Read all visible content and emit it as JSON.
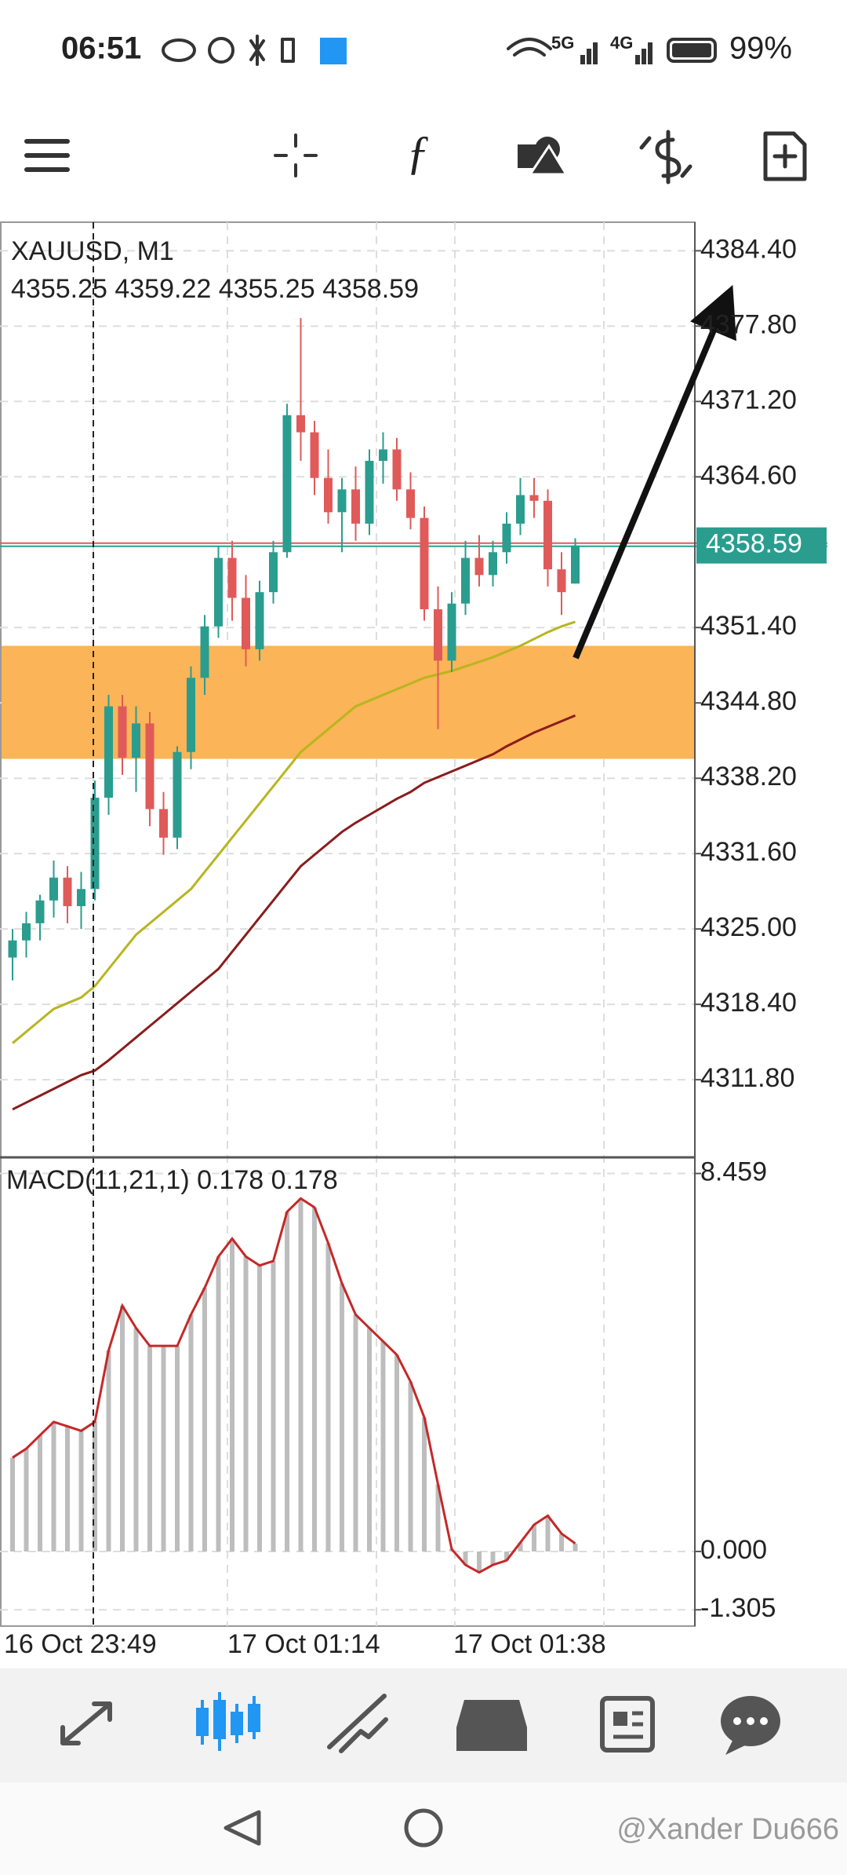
{
  "status_bar": {
    "time": "06:51",
    "network_1": "5G",
    "network_2": "4G",
    "battery": "99%"
  },
  "chart_data": {
    "type": "candlestick",
    "symbol": "XAUUSD, M1",
    "ohlc": [
      4355.25,
      4359.22,
      4355.25,
      4358.59
    ],
    "bull_color": "#2a9d8f",
    "bear_color": "#e05a5a",
    "open": [
      4322.5,
      4324.0,
      4325.5,
      4327.5,
      4329.5,
      4327.0,
      4328.5,
      4336.5,
      4344.5,
      4340.0,
      4343.0,
      4335.5,
      4333.0,
      4340.5,
      4347.0,
      4351.5,
      4357.5,
      4354.0,
      4349.5,
      4354.5,
      4358.0,
      4370.0,
      4368.5,
      4364.5,
      4361.5,
      4363.5,
      4360.5,
      4366.0,
      4367.0,
      4363.5,
      4361.0,
      4353.0,
      4348.5,
      4353.5,
      4357.5,
      4356.0,
      4358.0,
      4360.5,
      4363.0,
      4362.5,
      4356.5,
      4355.25
    ],
    "high": [
      4325.0,
      4326.5,
      4328.0,
      4331.0,
      4330.5,
      4330.0,
      4338.0,
      4345.5,
      4345.5,
      4344.5,
      4344.0,
      4337.0,
      4341.0,
      4348.0,
      4352.5,
      4358.5,
      4359.0,
      4356.0,
      4355.5,
      4359.0,
      4371.0,
      4378.5,
      4369.5,
      4367.0,
      4364.5,
      4365.5,
      4367.0,
      4368.5,
      4368.0,
      4365.0,
      4362.0,
      4355.0,
      4354.5,
      4359.0,
      4359.5,
      4359.0,
      4361.5,
      4364.5,
      4364.5,
      4363.5,
      4358.0,
      4359.22
    ],
    "low": [
      4320.5,
      4322.5,
      4324.0,
      4326.0,
      4325.5,
      4325.0,
      4327.5,
      4335.0,
      4338.5,
      4337.0,
      4334.0,
      4331.5,
      4332.0,
      4339.0,
      4345.5,
      4350.5,
      4352.0,
      4348.0,
      4348.5,
      4353.5,
      4357.5,
      4366.0,
      4363.0,
      4360.5,
      4358.0,
      4359.0,
      4359.5,
      4364.0,
      4362.5,
      4360.0,
      4352.0,
      4342.5,
      4347.5,
      4352.5,
      4355.0,
      4355.0,
      4357.0,
      4359.5,
      4361.0,
      4355.0,
      4352.5,
      4355.25
    ],
    "close": [
      4324.0,
      4325.5,
      4327.5,
      4329.5,
      4327.0,
      4328.5,
      4336.5,
      4344.5,
      4340.0,
      4343.0,
      4335.5,
      4333.0,
      4340.5,
      4347.0,
      4351.5,
      4357.5,
      4354.0,
      4349.5,
      4354.5,
      4358.0,
      4370.0,
      4368.5,
      4364.5,
      4361.5,
      4363.5,
      4360.5,
      4366.0,
      4367.0,
      4363.5,
      4361.0,
      4353.0,
      4348.5,
      4353.5,
      4357.5,
      4356.0,
      4358.0,
      4360.5,
      4363.0,
      4362.5,
      4356.5,
      4354.5,
      4358.59
    ],
    "ma_fast": {
      "color": "#b8b520",
      "values": [
        4315,
        4316,
        4317,
        4318,
        4318.5,
        4319,
        4320,
        4321.5,
        4323,
        4324.5,
        4325.5,
        4326.5,
        4327.5,
        4328.5,
        4330,
        4331.5,
        4333,
        4334.5,
        4336,
        4337.5,
        4339,
        4340.5,
        4341.5,
        4342.5,
        4343.5,
        4344.5,
        4345,
        4345.5,
        4346,
        4346.5,
        4347,
        4347.3,
        4347.6,
        4348,
        4348.4,
        4348.8,
        4349.3,
        4349.8,
        4350.4,
        4351,
        4351.5,
        4351.9
      ]
    },
    "ma_slow": {
      "color": "#8b1c1c",
      "values": [
        4309.2,
        4309.8,
        4310.4,
        4311,
        4311.6,
        4312.2,
        4312.6,
        4313.5,
        4314.5,
        4315.5,
        4316.5,
        4317.5,
        4318.5,
        4319.5,
        4320.5,
        4321.5,
        4323,
        4324.5,
        4326,
        4327.5,
        4329,
        4330.5,
        4331.5,
        4332.5,
        4333.5,
        4334.3,
        4335,
        4335.7,
        4336.4,
        4337,
        4337.8,
        4338.3,
        4338.8,
        4339.3,
        4339.8,
        4340.3,
        4341,
        4341.6,
        4342.2,
        4342.7,
        4343.2,
        4343.7
      ]
    },
    "zone": {
      "color": "#fbb457",
      "range": [
        4339.9,
        4349.8
      ]
    },
    "current_price": {
      "value": 4358.59,
      "color": "#2a9d8f"
    },
    "ylim": [
      4305.0,
      4386.9
    ],
    "yticks": [
      {
        "value": 4384.4,
        "label": "4384.40"
      },
      {
        "value": 4377.8,
        "label": "4377.80"
      },
      {
        "value": 4371.2,
        "label": "4371.20"
      },
      {
        "value": 4364.6,
        "label": "4364.60"
      },
      {
        "value": 4351.4,
        "label": "4351.40"
      },
      {
        "value": 4344.8,
        "label": "4344.80"
      },
      {
        "value": 4338.2,
        "label": "4338.20"
      },
      {
        "value": 4331.6,
        "label": "4331.60"
      },
      {
        "value": 4325.0,
        "label": "4325.00"
      },
      {
        "value": 4318.4,
        "label": "4318.40"
      },
      {
        "value": 4311.8,
        "label": "4311.80"
      }
    ],
    "grid": true,
    "x_labels": [
      "16 Oct 23:49",
      "17 Oct 01:14",
      "17 Oct 01:38"
    ],
    "macd": {
      "label": "MACD(11,21,1) 0.178 0.178",
      "color": "#c62828",
      "bar_color": "#bdbdbd",
      "values": [
        2.1,
        2.3,
        2.6,
        2.9,
        2.8,
        2.7,
        2.9,
        4.5,
        5.5,
        5.0,
        4.6,
        4.6,
        4.6,
        5.3,
        5.9,
        6.6,
        7.0,
        6.6,
        6.4,
        6.5,
        7.6,
        7.9,
        7.7,
        6.9,
        6.0,
        5.3,
        5.0,
        4.7,
        4.4,
        3.8,
        3.0,
        1.5,
        0.05,
        -0.3,
        -0.47,
        -0.3,
        -0.2,
        0.2,
        0.6,
        0.8,
        0.4,
        0.178
      ],
      "ylim": [
        -1.67,
        8.82
      ],
      "yticks": [
        8.459,
        {
          "value": 0,
          "label": "0.000"
        },
        {
          "value": -1.305,
          "label": "-1.305"
        }
      ]
    }
  },
  "watermark": "@Xander Du666"
}
